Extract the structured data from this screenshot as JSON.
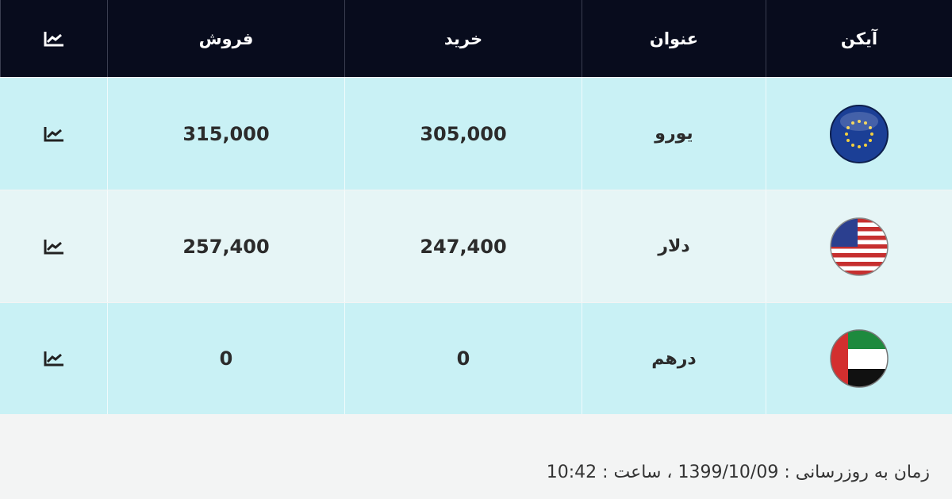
{
  "table": {
    "header": [
      "آیکن",
      "عنوان",
      "خرید",
      "فروش"
    ],
    "rows": [
      [
        "یورو",
        "305,000",
        "315,000"
      ],
      [
        "دلار",
        "247,400",
        "257,400"
      ],
      [
        "درهم",
        "0",
        "0"
      ]
    ]
  },
  "footer": "زمان به روزرسانی : 1399/10/09 ، ساعت : 10:42"
}
